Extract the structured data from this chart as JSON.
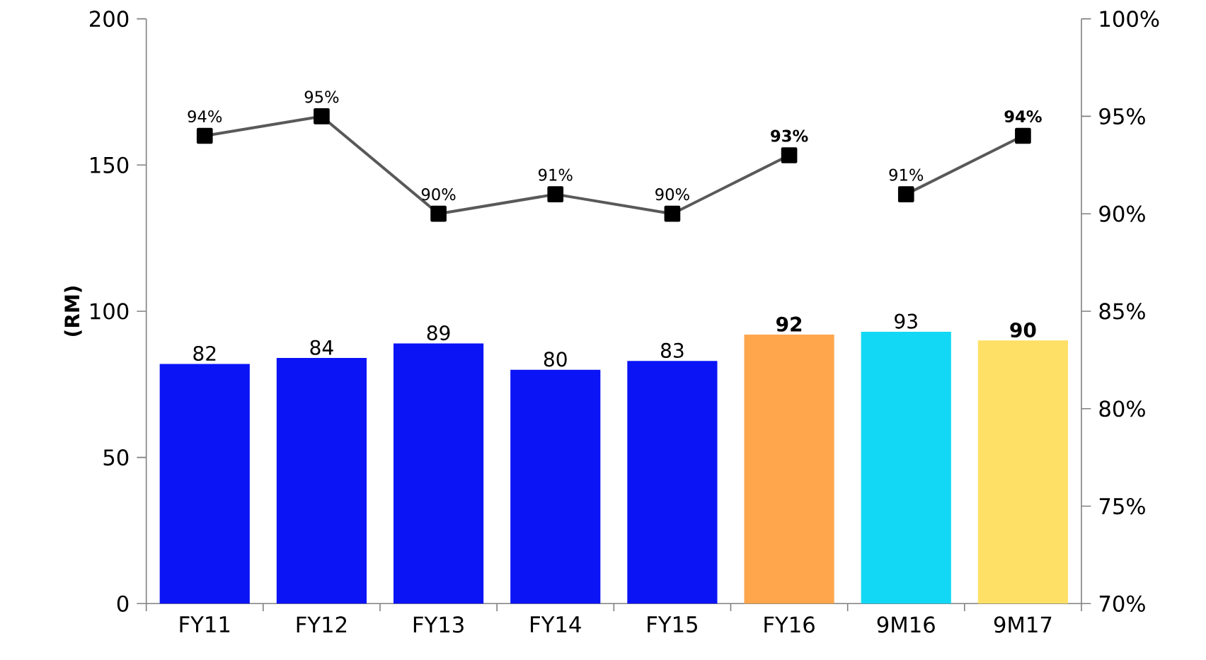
{
  "chart_data": {
    "type": "bar",
    "ylabel": "(RM)",
    "categories": [
      "FY11",
      "FY12",
      "FY13",
      "FY14",
      "FY15",
      "FY16",
      "9M16",
      "9M17"
    ],
    "series": [
      {
        "values": [
          82,
          84,
          89,
          80,
          83,
          92,
          93,
          90
        ],
        "colors": [
          "#0a14f5",
          "#0a14f5",
          "#0a14f5",
          "#0a14f5",
          "#0a14f5",
          "#ffa64d",
          "#12d8f5",
          "#ffe066"
        ],
        "value_labels": [
          "82",
          "84",
          "89",
          "80",
          "83",
          "**92**",
          "93",
          "**90**"
        ]
      },
      {
        "type": "line",
        "axis": "y2",
        "color": "#595959",
        "values": [
          94,
          95,
          90,
          91,
          90,
          93,
          null,
          null
        ],
        "value_labels": [
          "94%",
          "95%",
          "90%",
          "91%",
          "90%",
          "**93%**",
          null,
          null
        ]
      },
      {
        "type": "line",
        "axis": "y2",
        "color": "#595959",
        "values": [
          null,
          null,
          null,
          null,
          null,
          null,
          91,
          94
        ],
        "value_labels": [
          null,
          null,
          null,
          null,
          null,
          null,
          "91%",
          "**94%**"
        ]
      }
    ],
    "ylim": [
      0,
      200
    ],
    "yticks": [
      0,
      50,
      100,
      150,
      200
    ],
    "y2lim": [
      70,
      100
    ],
    "y2ticks": [
      {
        "value": 70,
        "label": "70%"
      },
      {
        "value": 75,
        "label": "75%"
      },
      {
        "value": 80,
        "label": "80%"
      },
      {
        "value": 85,
        "label": "85%"
      },
      {
        "value": 90,
        "label": "90%"
      },
      {
        "value": 95,
        "label": "95%"
      },
      {
        "value": 100,
        "label": "100%"
      }
    ],
    "marker": "square",
    "grid": false
  }
}
